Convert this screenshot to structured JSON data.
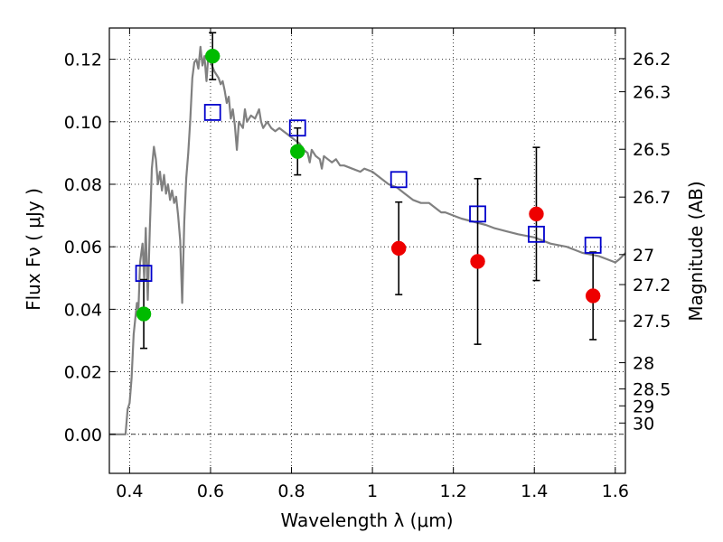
{
  "chart_data": {
    "type": "scatter",
    "xlabel": "Wavelength  λ (μm)",
    "ylabel": "Flux  Fν  ( μJy )",
    "ylabel_right": "Magnitude (AB)",
    "xlim": [
      0.35,
      1.625
    ],
    "ylim": [
      -0.0125,
      0.13
    ],
    "x_ticks": [
      0.4,
      0.6,
      0.8,
      1.0,
      1.2,
      1.4,
      1.6
    ],
    "x_tick_labels": [
      "0.4",
      "0.6",
      "0.8",
      "1",
      "1.2",
      "1.4",
      "1.6"
    ],
    "y_ticks": [
      0.0,
      0.02,
      0.04,
      0.06,
      0.08,
      0.1,
      0.12
    ],
    "y_tick_labels": [
      "0.00",
      "0.02",
      "0.04",
      "0.06",
      "0.08",
      "0.10",
      "0.12"
    ],
    "mag_ticks": [
      {
        "label": "26.2",
        "flux": 0.1202
      },
      {
        "label": "26.3",
        "flux": 0.1096
      },
      {
        "label": "26.5",
        "flux": 0.0912
      },
      {
        "label": "26.7",
        "flux": 0.0759
      },
      {
        "label": "27",
        "flux": 0.0575
      },
      {
        "label": "27.2",
        "flux": 0.0479
      },
      {
        "label": "27.5",
        "flux": 0.0363
      },
      {
        "label": "28",
        "flux": 0.0229
      },
      {
        "label": "28.5",
        "flux": 0.0145
      },
      {
        "label": "29",
        "flux": 0.0091
      },
      {
        "label": "30",
        "flux": 0.0036
      }
    ],
    "grid": true,
    "zero_line": true,
    "colors": {
      "model": "#808080",
      "detections_optical": "#00bb00",
      "detections_ir": "#ee0000",
      "model_photometry": "#0000cc",
      "errorbar": "#000000"
    },
    "series": [
      {
        "kind": "line",
        "color": "#808080",
        "points": [
          [
            0.35,
            0.0
          ],
          [
            0.39,
            0.0
          ],
          [
            0.395,
            0.008
          ],
          [
            0.4,
            0.01
          ],
          [
            0.405,
            0.018
          ],
          [
            0.41,
            0.032
          ],
          [
            0.418,
            0.042
          ],
          [
            0.422,
            0.04
          ],
          [
            0.426,
            0.055
          ],
          [
            0.432,
            0.061
          ],
          [
            0.436,
            0.05
          ],
          [
            0.44,
            0.066
          ],
          [
            0.445,
            0.043
          ],
          [
            0.45,
            0.066
          ],
          [
            0.455,
            0.085
          ],
          [
            0.46,
            0.092
          ],
          [
            0.465,
            0.088
          ],
          [
            0.47,
            0.08
          ],
          [
            0.475,
            0.084
          ],
          [
            0.48,
            0.078
          ],
          [
            0.485,
            0.083
          ],
          [
            0.49,
            0.077
          ],
          [
            0.495,
            0.08
          ],
          [
            0.5,
            0.075
          ],
          [
            0.505,
            0.078
          ],
          [
            0.51,
            0.074
          ],
          [
            0.515,
            0.076
          ],
          [
            0.52,
            0.07
          ],
          [
            0.525,
            0.062
          ],
          [
            0.53,
            0.042
          ],
          [
            0.535,
            0.068
          ],
          [
            0.54,
            0.082
          ],
          [
            0.545,
            0.09
          ],
          [
            0.55,
            0.101
          ],
          [
            0.555,
            0.114
          ],
          [
            0.56,
            0.119
          ],
          [
            0.565,
            0.12
          ],
          [
            0.57,
            0.117
          ],
          [
            0.575,
            0.124
          ],
          [
            0.58,
            0.118
          ],
          [
            0.585,
            0.121
          ],
          [
            0.59,
            0.113
          ],
          [
            0.595,
            0.122
          ],
          [
            0.6,
            0.119
          ],
          [
            0.61,
            0.116
          ],
          [
            0.62,
            0.114
          ],
          [
            0.625,
            0.112
          ],
          [
            0.63,
            0.113
          ],
          [
            0.635,
            0.11
          ],
          [
            0.64,
            0.106
          ],
          [
            0.645,
            0.108
          ],
          [
            0.65,
            0.101
          ],
          [
            0.655,
            0.104
          ],
          [
            0.66,
            0.099
          ],
          [
            0.665,
            0.091
          ],
          [
            0.67,
            0.1
          ],
          [
            0.68,
            0.098
          ],
          [
            0.685,
            0.104
          ],
          [
            0.69,
            0.1
          ],
          [
            0.7,
            0.102
          ],
          [
            0.71,
            0.101
          ],
          [
            0.72,
            0.104
          ],
          [
            0.725,
            0.1
          ],
          [
            0.73,
            0.098
          ],
          [
            0.74,
            0.1
          ],
          [
            0.75,
            0.098
          ],
          [
            0.76,
            0.097
          ],
          [
            0.77,
            0.098
          ],
          [
            0.78,
            0.097
          ],
          [
            0.79,
            0.096
          ],
          [
            0.8,
            0.095
          ],
          [
            0.81,
            0.094
          ],
          [
            0.82,
            0.093
          ],
          [
            0.83,
            0.091
          ],
          [
            0.84,
            0.09
          ],
          [
            0.845,
            0.087
          ],
          [
            0.85,
            0.091
          ],
          [
            0.86,
            0.089
          ],
          [
            0.87,
            0.088
          ],
          [
            0.875,
            0.085
          ],
          [
            0.88,
            0.089
          ],
          [
            0.89,
            0.088
          ],
          [
            0.9,
            0.087
          ],
          [
            0.91,
            0.088
          ],
          [
            0.92,
            0.086
          ],
          [
            0.93,
            0.086
          ],
          [
            0.95,
            0.085
          ],
          [
            0.97,
            0.084
          ],
          [
            0.98,
            0.085
          ],
          [
            1.0,
            0.084
          ],
          [
            1.02,
            0.082
          ],
          [
            1.04,
            0.08
          ],
          [
            1.06,
            0.079
          ],
          [
            1.08,
            0.077
          ],
          [
            1.1,
            0.075
          ],
          [
            1.12,
            0.074
          ],
          [
            1.14,
            0.074
          ],
          [
            1.16,
            0.072
          ],
          [
            1.17,
            0.071
          ],
          [
            1.18,
            0.071
          ],
          [
            1.2,
            0.07
          ],
          [
            1.22,
            0.069
          ],
          [
            1.25,
            0.068
          ],
          [
            1.28,
            0.067
          ],
          [
            1.3,
            0.066
          ],
          [
            1.33,
            0.065
          ],
          [
            1.36,
            0.064
          ],
          [
            1.4,
            0.063
          ],
          [
            1.44,
            0.061
          ],
          [
            1.48,
            0.06
          ],
          [
            1.52,
            0.058
          ],
          [
            1.56,
            0.057
          ],
          [
            1.58,
            0.056
          ],
          [
            1.6,
            0.055
          ],
          [
            1.61,
            0.056
          ],
          [
            1.625,
            0.058
          ]
        ]
      },
      {
        "kind": "points",
        "marker": "circle",
        "color": "#00bb00",
        "points": [
          {
            "x": 0.435,
            "y": 0.0385,
            "err": 0.011
          },
          {
            "x": 0.605,
            "y": 0.121,
            "err": 0.0075
          },
          {
            "x": 0.815,
            "y": 0.0905,
            "err": 0.0075
          }
        ]
      },
      {
        "kind": "points",
        "marker": "circle",
        "color": "#ee0000",
        "points": [
          {
            "x": 1.065,
            "y": 0.0595,
            "err": 0.0148
          },
          {
            "x": 1.26,
            "y": 0.0553,
            "err": 0.0265
          },
          {
            "x": 1.405,
            "y": 0.0705,
            "err": 0.0213
          },
          {
            "x": 1.545,
            "y": 0.0443,
            "err": 0.014
          }
        ]
      },
      {
        "kind": "points",
        "marker": "square",
        "color": "#0000cc",
        "points": [
          {
            "x": 0.435,
            "y": 0.0515
          },
          {
            "x": 0.605,
            "y": 0.103
          },
          {
            "x": 0.815,
            "y": 0.098
          },
          {
            "x": 1.065,
            "y": 0.0815
          },
          {
            "x": 1.26,
            "y": 0.0705
          },
          {
            "x": 1.405,
            "y": 0.064
          },
          {
            "x": 1.545,
            "y": 0.0605
          }
        ]
      }
    ]
  }
}
